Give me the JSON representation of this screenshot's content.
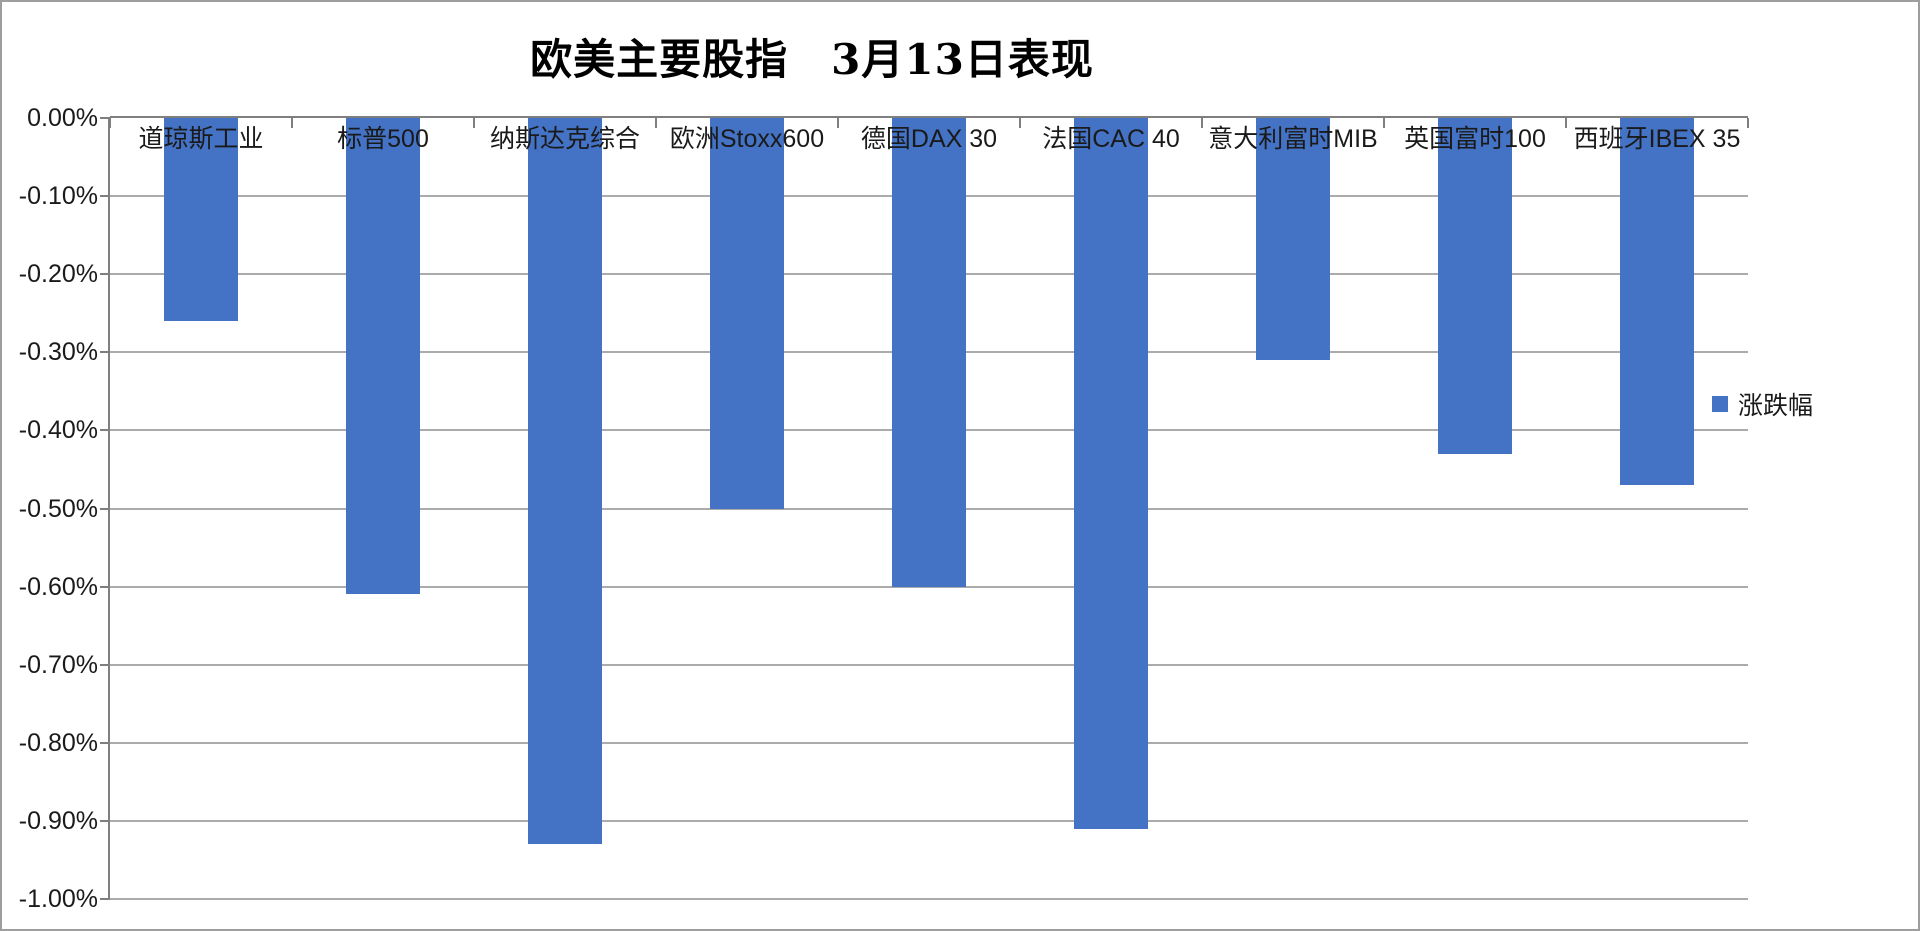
{
  "title": "欧美主要股指　3月13日表现",
  "legend": {
    "label": "涨跌幅"
  },
  "colors": {
    "bar": "#4472C4",
    "gridline": "#ababab",
    "axis": "#7f7f7f",
    "text": "#1a1a1a"
  },
  "chart_data": {
    "type": "bar",
    "title": "欧美主要股指　3月13日表现",
    "categories": [
      "道琼斯工业",
      "标普500",
      "纳斯达克综合",
      "欧洲Stoxx600",
      "德国DAX 30",
      "法国CAC 40",
      "意大利富时MIB",
      "英国富时100",
      "西班牙IBEX 35"
    ],
    "series": [
      {
        "name": "涨跌幅",
        "values": [
          -0.26,
          -0.61,
          -0.93,
          -0.5,
          -0.6,
          -0.91,
          -0.31,
          -0.43,
          -0.47
        ]
      }
    ],
    "value_unit": "percent",
    "ylim": [
      -1.0,
      0.0
    ],
    "y_tick_step": 0.1,
    "y_ticks": [
      "0.00%",
      "-0.10%",
      "-0.20%",
      "-0.30%",
      "-0.40%",
      "-0.50%",
      "-0.60%",
      "-0.70%",
      "-0.80%",
      "-0.90%",
      "-1.00%"
    ],
    "grid": true,
    "category_labels_position": "top-inside",
    "legend_position": "right",
    "legend_entries": [
      "涨跌幅"
    ]
  }
}
